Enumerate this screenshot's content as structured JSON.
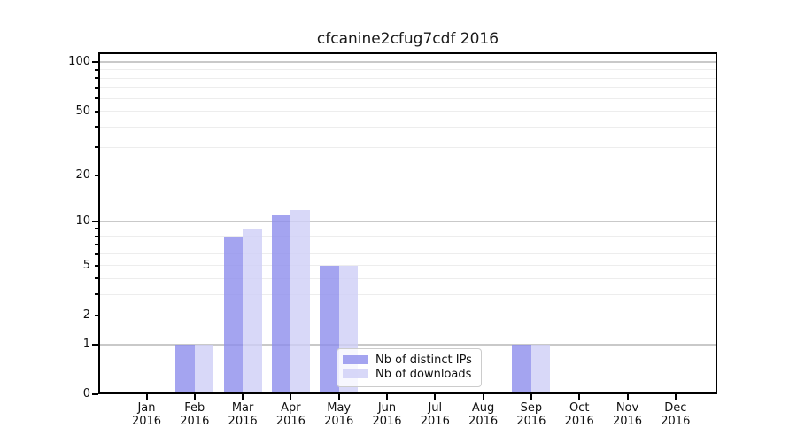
{
  "chart_data": {
    "type": "bar",
    "title": "cfcanine2cfug7cdf 2016",
    "year": "2016",
    "months": [
      "Jan",
      "Feb",
      "Mar",
      "Apr",
      "May",
      "Jun",
      "Jul",
      "Aug",
      "Sep",
      "Oct",
      "Nov",
      "Dec"
    ],
    "categories": [
      "Jan 2016",
      "Feb 2016",
      "Mar 2016",
      "Apr 2016",
      "May 2016",
      "Jun 2016",
      "Jul 2016",
      "Aug 2016",
      "Sep 2016",
      "Oct 2016",
      "Nov 2016",
      "Dec 2016"
    ],
    "series": [
      {
        "name": "Nb of distinct IPs",
        "color": "#8d8dec",
        "values": [
          0,
          1,
          8,
          11,
          5,
          0,
          0,
          0,
          1,
          0,
          0,
          0
        ]
      },
      {
        "name": "Nb of downloads",
        "color": "#cecef6",
        "values": [
          0,
          1,
          9,
          12,
          5,
          0,
          0,
          0,
          1,
          0,
          0,
          0
        ]
      }
    ],
    "yscale": "log1p",
    "ylim": [
      0,
      115
    ],
    "yticks": [
      0,
      1,
      2,
      5,
      10,
      20,
      50,
      100
    ],
    "major_ticks": [
      0,
      1,
      10,
      100
    ],
    "major_gridlines": [
      1,
      10,
      100
    ],
    "minor_gridlines": [
      2,
      3,
      4,
      5,
      6,
      7,
      8,
      9,
      20,
      30,
      40,
      50,
      60,
      70,
      80,
      90
    ],
    "grid": true,
    "legend_position": "lower center"
  }
}
